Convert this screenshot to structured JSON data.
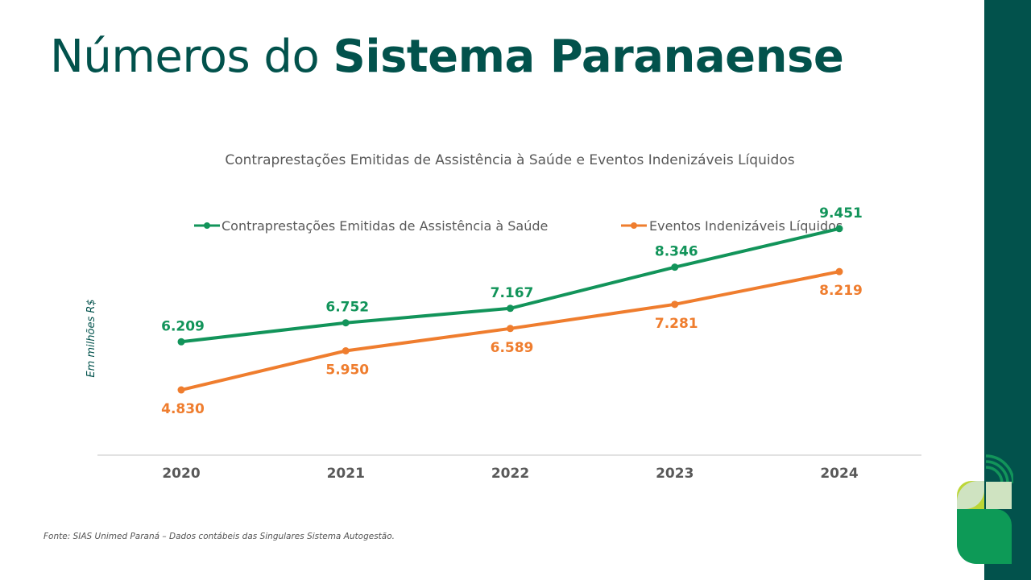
{
  "header": {
    "title_regular": "Números do",
    "title_bold": "Sistema Paranaense"
  },
  "footer": {
    "source": "Fonte: SIAS Unimed Paraná – Dados contábeis das Singulares Sistema Autogestão."
  },
  "logo": {
    "icon": "unimed-logo-icon"
  },
  "colors": {
    "brand_dark": "#02524c",
    "series_green": "#12945a",
    "series_orange": "#ef7d2e"
  },
  "chart_data": {
    "type": "line",
    "title": "Contraprestações Emitidas de Assistência à Saúde e Eventos Indenizáveis Líquidos",
    "ylabel": "Em milhões R$",
    "xlabel": "",
    "categories": [
      "2020",
      "2021",
      "2022",
      "2023",
      "2024"
    ],
    "series": [
      {
        "name": "Contraprestações Emitidas de Assistência à Saúde",
        "color": "#12945a",
        "values": [
          6209,
          6752,
          7167,
          8346,
          9451
        ],
        "labels": [
          "6.209",
          "6.752",
          "7.167",
          "8.346",
          "9.451"
        ]
      },
      {
        "name": "Eventos Indenizáveis Líquidos",
        "color": "#ef7d2e",
        "values": [
          4830,
          5950,
          6589,
          7281,
          8219
        ],
        "labels": [
          "4.830",
          "5.950",
          "6.589",
          "7.281",
          "8.219"
        ]
      }
    ],
    "legend_position": "top",
    "grid": false
  }
}
